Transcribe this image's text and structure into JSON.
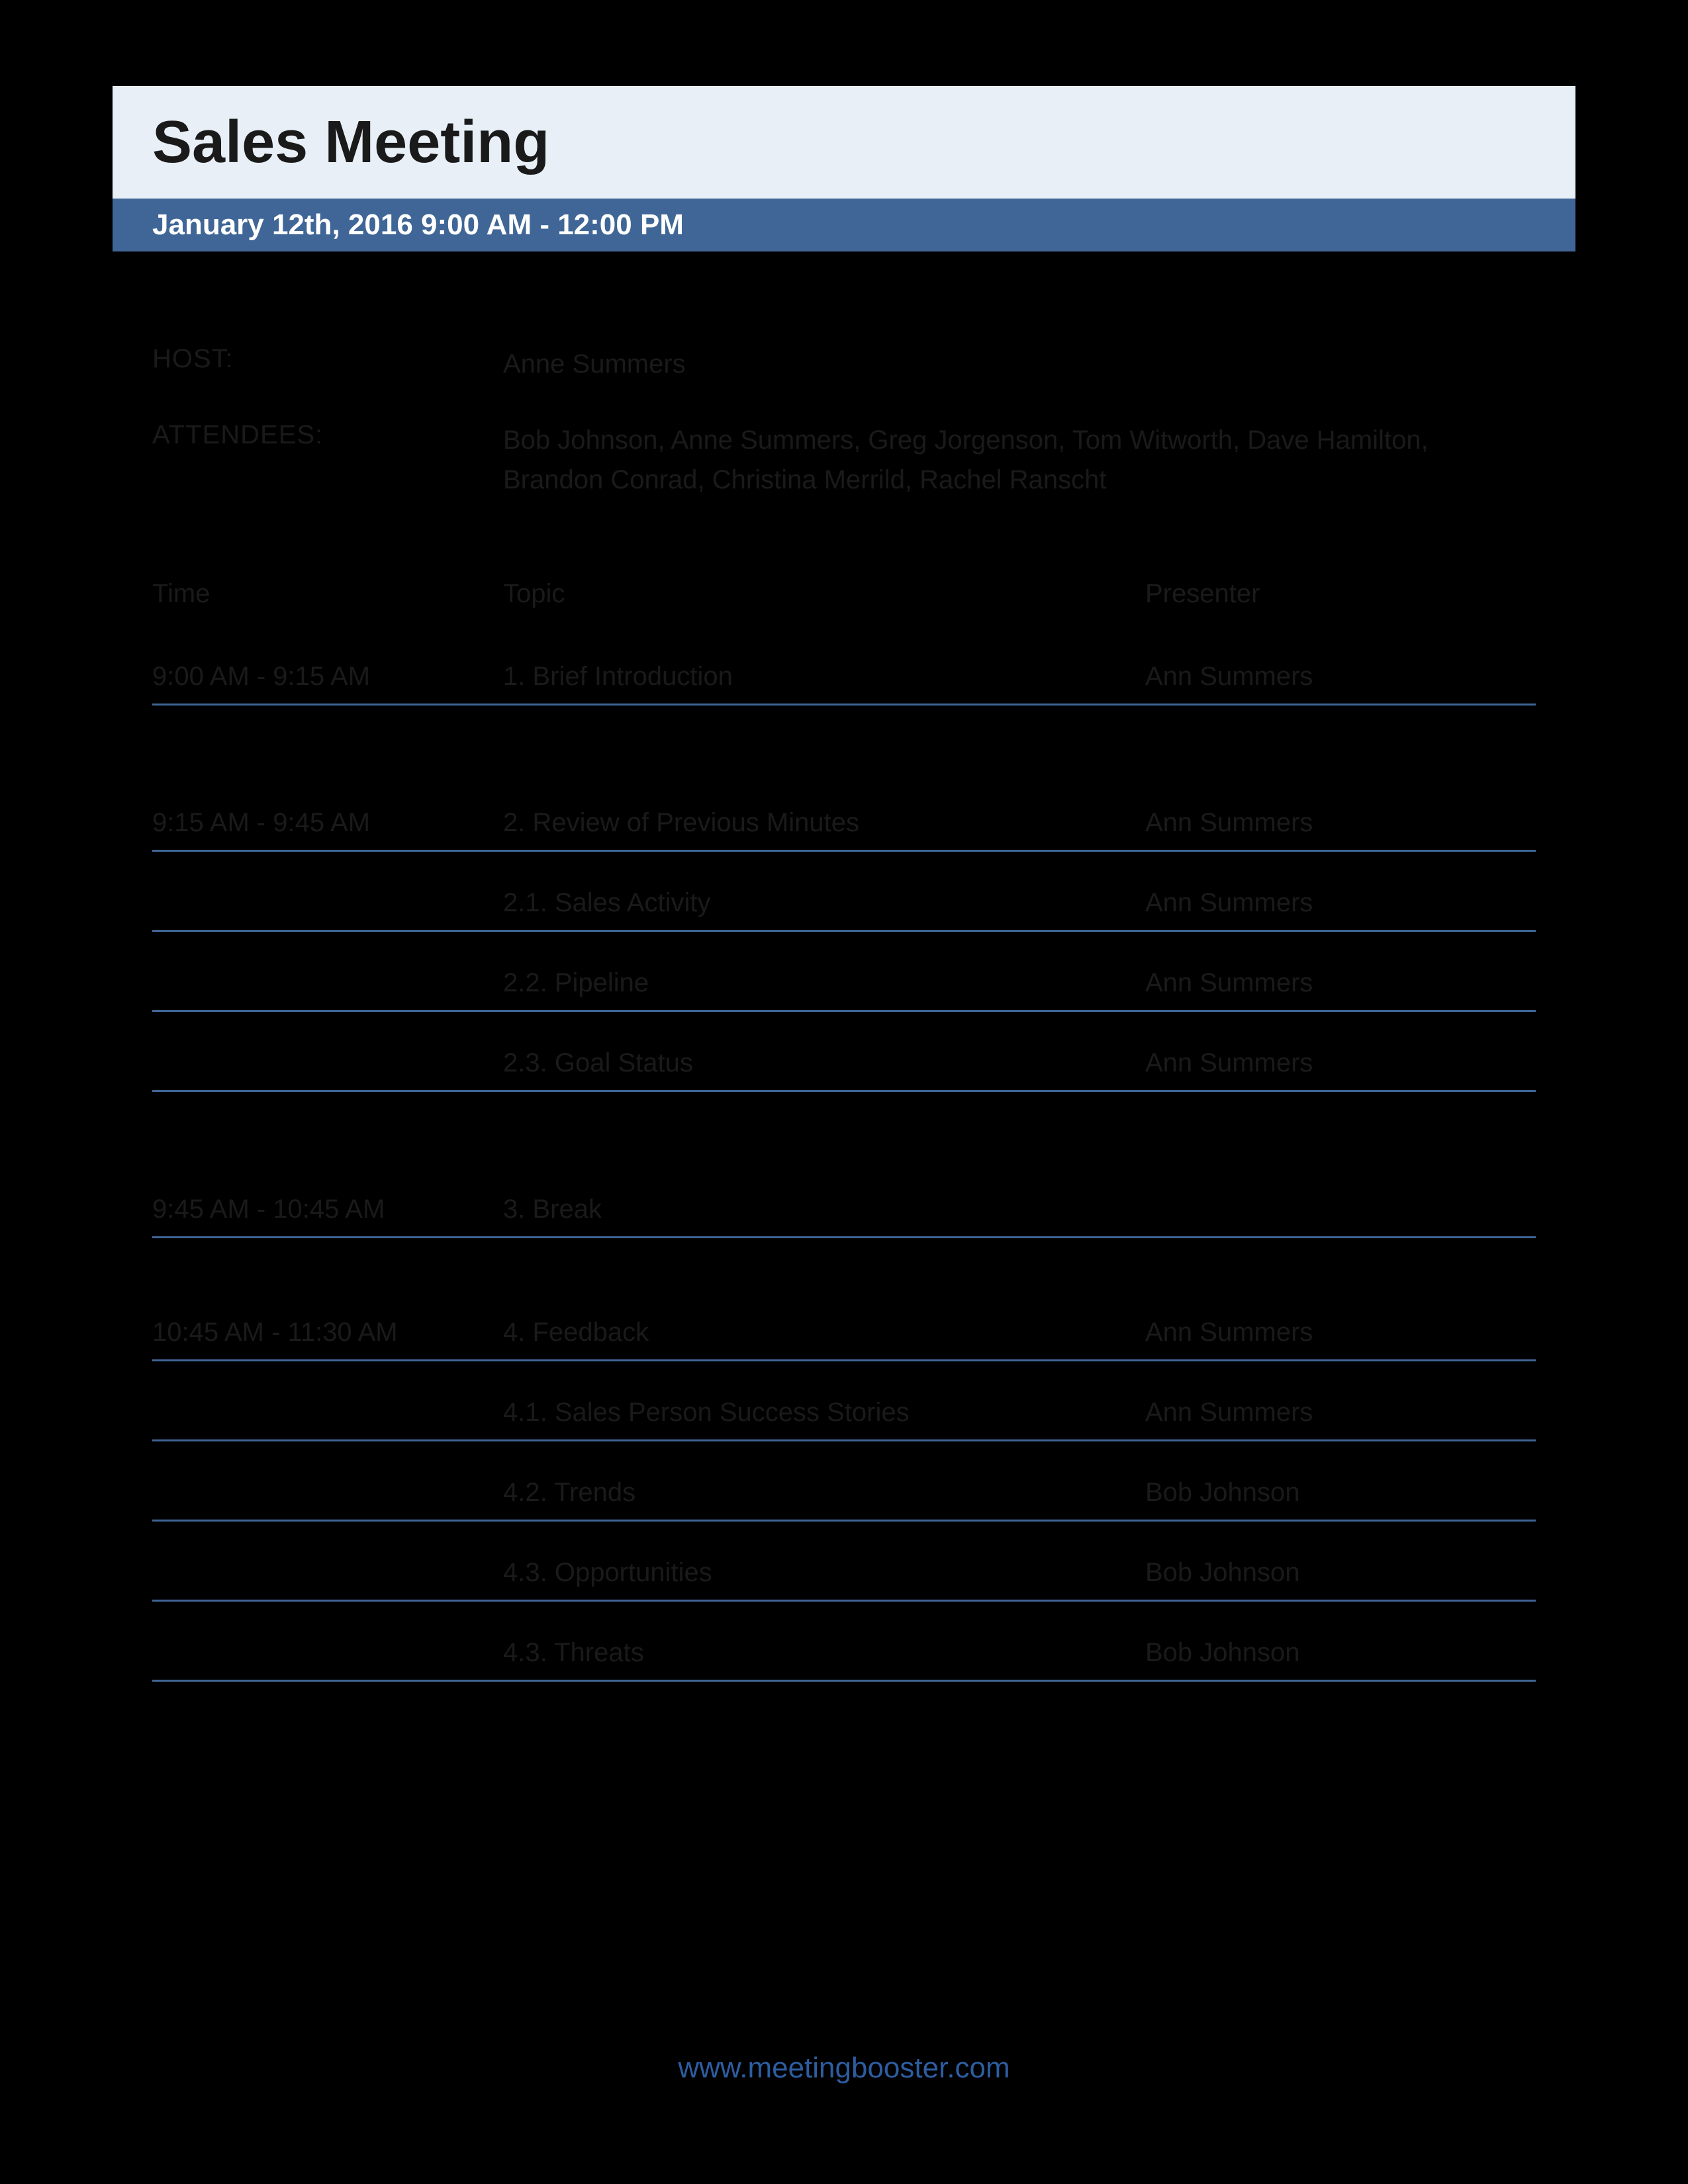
{
  "colors": {
    "page_bg": "#000000",
    "title_band_bg": "#e8eff7",
    "subtitle_band_bg": "#3f6696",
    "rule_color": "#3f6696",
    "text_color": "#1a1a1a",
    "subtitle_text": "#ffffff",
    "link_color": "#2d5da0"
  },
  "header": {
    "title": "Sales Meeting",
    "subtitle": "January 12th, 2016  9:00 AM - 12:00 PM"
  },
  "meta": {
    "host_label": "HOST:",
    "host_value": "Anne Summers",
    "attendees_label": "ATTENDEES:",
    "attendees_value": "Bob Johnson, Anne Summers, Greg Jorgenson, Tom Witworth, Dave Hamilton, Brandon Conrad, Christina Merrild, Rachel Ranscht"
  },
  "agenda_headers": {
    "time": "Time",
    "topic": "Topic",
    "presenter": "Presenter"
  },
  "agenda": [
    {
      "time": "9:00 AM - 9:15 AM",
      "topic": "1. Brief Introduction",
      "presenter": "Ann Summers",
      "gap_after": "big"
    },
    {
      "time": "9:15 AM - 9:45 AM",
      "topic": "2. Review of Previous Minutes",
      "presenter": "Ann Summers"
    },
    {
      "time": "",
      "topic": "2.1. Sales Activity",
      "presenter": "Ann Summers"
    },
    {
      "time": "",
      "topic": "2.2. Pipeline",
      "presenter": "Ann Summers"
    },
    {
      "time": "",
      "topic": "2.3. Goal Status",
      "presenter": "Ann Summers",
      "gap_after": "big"
    },
    {
      "time": "9:45 AM - 10:45 AM",
      "topic": "3. Break",
      "presenter": "",
      "gap_after": "section"
    },
    {
      "time": "10:45 AM - 11:30 AM",
      "topic": "4. Feedback",
      "presenter": "Ann Summers"
    },
    {
      "time": "",
      "topic": "4.1. Sales Person Success Stories",
      "presenter": "Ann Summers"
    },
    {
      "time": "",
      "topic": "4.2. Trends",
      "presenter": "Bob Johnson"
    },
    {
      "time": "",
      "topic": "4.3. Opportunities",
      "presenter": "Bob Johnson"
    },
    {
      "time": "",
      "topic": "4.3. Threats",
      "presenter": "Bob Johnson"
    }
  ],
  "footer": {
    "link_text": "www.meetingbooster.com"
  }
}
